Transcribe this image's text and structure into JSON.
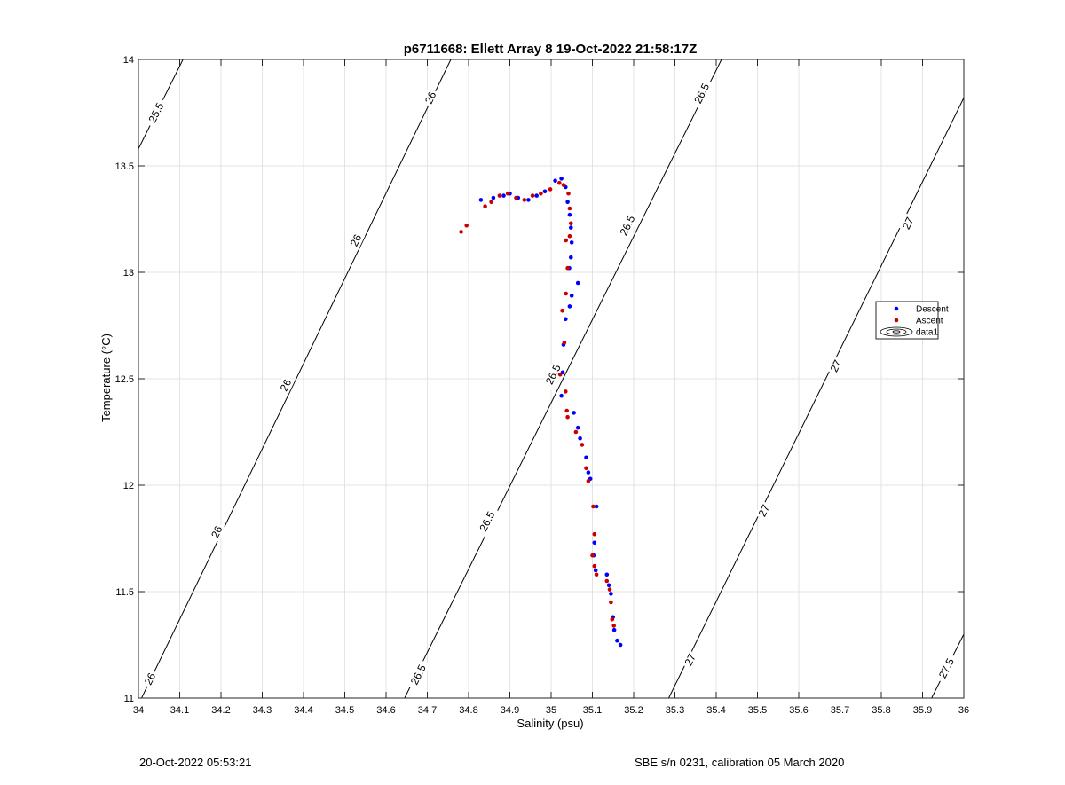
{
  "chart_data": {
    "type": "scatter",
    "title": "p6711668: Ellett Array 8 19-Oct-2022 21:58:17Z",
    "xlabel": "Salinity (psu)",
    "ylabel": "Temperature (°C)",
    "xlim": [
      34,
      36
    ],
    "ylim": [
      11,
      14
    ],
    "xticks": [
      34,
      34.1,
      34.2,
      34.3,
      34.4,
      34.5,
      34.6,
      34.7,
      34.8,
      34.9,
      35,
      35.1,
      35.2,
      35.3,
      35.4,
      35.5,
      35.6,
      35.7,
      35.8,
      35.9,
      36
    ],
    "xtick_labels": [
      "34",
      "34.1",
      "34.2",
      "34.3",
      "34.4",
      "34.5",
      "34.6",
      "34.7",
      "34.8",
      "34.9",
      "35",
      "35.1",
      "35.2",
      "35.3",
      "35.4",
      "35.5",
      "35.6",
      "35.7",
      "35.8",
      "35.9",
      "36"
    ],
    "yticks": [
      11,
      11.5,
      12,
      12.5,
      13,
      13.5,
      14
    ],
    "ytick_labels": [
      "11",
      "11.5",
      "12",
      "12.5",
      "13",
      "13.5",
      "14"
    ],
    "grid": true,
    "legend_position": "right",
    "contours": [
      {
        "level": "25.5",
        "points": [
          [
            34.0,
            13.58
          ],
          [
            34.108,
            14.0
          ]
        ],
        "labels": [
          {
            "text": "25.5",
            "at": [
              34.043,
              13.75
            ]
          }
        ]
      },
      {
        "level": "26",
        "points": [
          [
            34.0,
            10.97
          ],
          [
            34.757,
            14.0
          ]
        ],
        "labels": [
          {
            "text": "26",
            "at": [
              34.028,
              11.09
            ]
          },
          {
            "text": "26",
            "at": [
              34.19,
              11.78
            ]
          },
          {
            "text": "26",
            "at": [
              34.357,
              12.47
            ]
          },
          {
            "text": "26",
            "at": [
              34.527,
              13.15
            ]
          },
          {
            "text": "26",
            "at": [
              34.708,
              13.82
            ]
          }
        ]
      },
      {
        "level": "26.5",
        "points": [
          [
            34.645,
            11.0
          ],
          [
            35.413,
            14.0
          ]
        ],
        "labels": [
          {
            "text": "26.5",
            "at": [
              34.678,
              11.11
            ]
          },
          {
            "text": "26.5",
            "at": [
              34.845,
              11.83
            ]
          },
          {
            "text": "26.5",
            "at": [
              35.005,
              12.52
            ]
          },
          {
            "text": "26.5",
            "at": [
              35.185,
              13.22
            ]
          },
          {
            "text": "26.5",
            "at": [
              35.365,
              13.84
            ]
          }
        ]
      },
      {
        "level": "27",
        "points": [
          [
            35.285,
            11.0
          ],
          [
            36.0,
            13.82
          ]
        ],
        "labels": [
          {
            "text": "27",
            "at": [
              35.337,
              11.18
            ]
          },
          {
            "text": "27",
            "at": [
              35.516,
              11.88
            ]
          },
          {
            "text": "27",
            "at": [
              35.69,
              12.56
            ]
          },
          {
            "text": "27",
            "at": [
              35.865,
              13.23
            ]
          }
        ]
      },
      {
        "level": "27.5",
        "points": [
          [
            35.922,
            11.0
          ],
          [
            36.0,
            11.3
          ]
        ],
        "labels": [
          {
            "text": "27.5",
            "at": [
              35.958,
              11.14
            ]
          }
        ]
      }
    ],
    "series": [
      {
        "name": "Descent",
        "color": "#0000ff",
        "points": [
          [
            34.83,
            13.34
          ],
          [
            34.86,
            13.35
          ],
          [
            34.885,
            13.36
          ],
          [
            34.9,
            13.37
          ],
          [
            34.92,
            13.35
          ],
          [
            34.945,
            13.34
          ],
          [
            34.965,
            13.36
          ],
          [
            34.985,
            13.38
          ],
          [
            35.01,
            13.43
          ],
          [
            35.025,
            13.44
          ],
          [
            35.035,
            13.4
          ],
          [
            35.04,
            13.33
          ],
          [
            35.045,
            13.27
          ],
          [
            35.048,
            13.21
          ],
          [
            35.05,
            13.14
          ],
          [
            35.048,
            13.07
          ],
          [
            35.044,
            13.02
          ],
          [
            35.065,
            12.95
          ],
          [
            35.05,
            12.89
          ],
          [
            35.045,
            12.84
          ],
          [
            35.035,
            12.78
          ],
          [
            35.03,
            12.66
          ],
          [
            35.028,
            12.53
          ],
          [
            35.025,
            12.42
          ],
          [
            35.055,
            12.34
          ],
          [
            35.065,
            12.27
          ],
          [
            35.07,
            12.22
          ],
          [
            35.085,
            12.13
          ],
          [
            35.09,
            12.06
          ],
          [
            35.095,
            12.03
          ],
          [
            35.11,
            11.9
          ],
          [
            35.105,
            11.73
          ],
          [
            35.103,
            11.67
          ],
          [
            35.108,
            11.6
          ],
          [
            35.135,
            11.58
          ],
          [
            35.14,
            11.53
          ],
          [
            35.145,
            11.49
          ],
          [
            35.15,
            11.38
          ],
          [
            35.153,
            11.32
          ],
          [
            35.16,
            11.27
          ],
          [
            35.168,
            11.25
          ]
        ]
      },
      {
        "name": "Ascent",
        "color": "#cc0000",
        "points": [
          [
            34.782,
            13.19
          ],
          [
            34.795,
            13.22
          ],
          [
            34.84,
            13.31
          ],
          [
            34.855,
            13.33
          ],
          [
            34.875,
            13.36
          ],
          [
            34.895,
            13.37
          ],
          [
            34.915,
            13.35
          ],
          [
            34.935,
            13.34
          ],
          [
            34.955,
            13.36
          ],
          [
            34.975,
            13.37
          ],
          [
            34.998,
            13.39
          ],
          [
            35.02,
            13.42
          ],
          [
            35.03,
            13.41
          ],
          [
            35.042,
            13.37
          ],
          [
            35.045,
            13.3
          ],
          [
            35.048,
            13.23
          ],
          [
            35.045,
            13.17
          ],
          [
            35.036,
            13.15
          ],
          [
            35.04,
            13.02
          ],
          [
            35.036,
            12.9
          ],
          [
            35.027,
            12.82
          ],
          [
            35.032,
            12.67
          ],
          [
            35.022,
            12.52
          ],
          [
            35.035,
            12.44
          ],
          [
            35.038,
            12.35
          ],
          [
            35.04,
            12.32
          ],
          [
            35.06,
            12.25
          ],
          [
            35.075,
            12.19
          ],
          [
            35.085,
            12.08
          ],
          [
            35.09,
            12.02
          ],
          [
            35.102,
            11.9
          ],
          [
            35.105,
            11.77
          ],
          [
            35.1,
            11.67
          ],
          [
            35.105,
            11.62
          ],
          [
            35.11,
            11.58
          ],
          [
            35.135,
            11.55
          ],
          [
            35.142,
            11.51
          ],
          [
            35.145,
            11.45
          ],
          [
            35.148,
            11.37
          ],
          [
            35.152,
            11.34
          ]
        ]
      },
      {
        "name": "data1",
        "color": "#000000",
        "points": []
      }
    ]
  },
  "footer": {
    "timestamp": "20-Oct-2022 05:53:21",
    "sensor": "SBE s/n 0231, calibration 05 March 2020"
  }
}
